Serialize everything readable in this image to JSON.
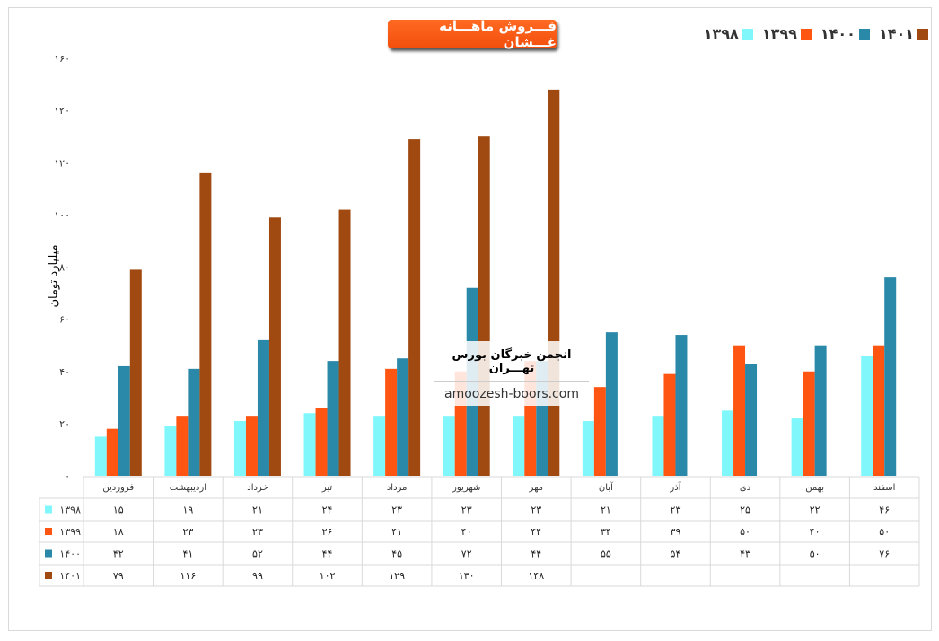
{
  "chart_data": {
    "type": "bar",
    "title": "فـــروش ماهـــانه غـــشان",
    "ylabel": "میلیارد تومان",
    "ylim": [
      0,
      160
    ],
    "yticks": [
      "۰",
      "۲۰",
      "۴۰",
      "۶۰",
      "۸۰",
      "۱۰۰",
      "۱۲۰",
      "۱۴۰",
      "۱۶۰"
    ],
    "categories": [
      "فروردین",
      "اردیبهشت",
      "خرداد",
      "تیر",
      "مرداد",
      "شهریور",
      "مهر",
      "آبان",
      "آذر",
      "دی",
      "بهمن",
      "اسفند"
    ],
    "series": [
      {
        "name": "۱۳۹۸",
        "color": "#80f8fb",
        "values": [
          15,
          19,
          21,
          24,
          23,
          23,
          23,
          21,
          23,
          25,
          22,
          46
        ]
      },
      {
        "name": "۱۳۹۹",
        "color": "#ff5512",
        "values": [
          18,
          23,
          23,
          26,
          41,
          40,
          44,
          34,
          39,
          50,
          40,
          50
        ]
      },
      {
        "name": "۱۴۰۰",
        "color": "#2a88a8",
        "values": [
          42,
          41,
          52,
          44,
          45,
          72,
          44,
          55,
          54,
          43,
          50,
          76
        ]
      },
      {
        "name": "۱۴۰۱",
        "color": "#a04a12",
        "values": [
          79,
          116,
          99,
          102,
          129,
          130,
          148,
          null,
          null,
          null,
          null,
          null
        ]
      }
    ],
    "legend": "top-right",
    "data_table": true
  },
  "watermark": {
    "line1": "انجمن خبرگان بورس تهـــران",
    "line2": "amoozesh-boors.com"
  }
}
